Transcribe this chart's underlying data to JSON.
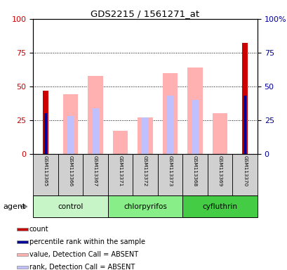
{
  "title": "GDS2215 / 1561271_at",
  "samples": [
    "GSM113365",
    "GSM113366",
    "GSM113367",
    "GSM113371",
    "GSM113372",
    "GSM113373",
    "GSM113368",
    "GSM113369",
    "GSM113370"
  ],
  "count_values": [
    47,
    0,
    0,
    0,
    0,
    0,
    0,
    0,
    82
  ],
  "rank_values": [
    30,
    0,
    0,
    0,
    0,
    0,
    0,
    0,
    43
  ],
  "absent_value_bars": [
    0,
    44,
    58,
    17,
    27,
    60,
    64,
    30,
    0
  ],
  "absent_rank_bars": [
    0,
    28,
    34,
    0,
    27,
    43,
    40,
    0,
    0
  ],
  "ylim": [
    0,
    100
  ],
  "yticks": [
    0,
    25,
    50,
    75,
    100
  ],
  "color_count": "#cc0000",
  "color_rank": "#000099",
  "color_absent_value": "#ffb0b0",
  "color_absent_rank": "#c0c0ff",
  "color_sample_bg": "#d0d0d0",
  "groups_info": [
    {
      "name": "control",
      "start": 0,
      "end": 3,
      "color": "#c8f5c8"
    },
    {
      "name": "chlorpyrifos",
      "start": 3,
      "end": 6,
      "color": "#88ee88"
    },
    {
      "name": "cyfluthrin",
      "start": 6,
      "end": 9,
      "color": "#44cc44"
    }
  ],
  "legend_items": [
    {
      "color": "#cc0000",
      "label": "count"
    },
    {
      "color": "#000099",
      "label": "percentile rank within the sample"
    },
    {
      "color": "#ffb0b0",
      "label": "value, Detection Call = ABSENT"
    },
    {
      "color": "#c0c0ff",
      "label": "rank, Detection Call = ABSENT"
    }
  ],
  "agent_label": "agent"
}
